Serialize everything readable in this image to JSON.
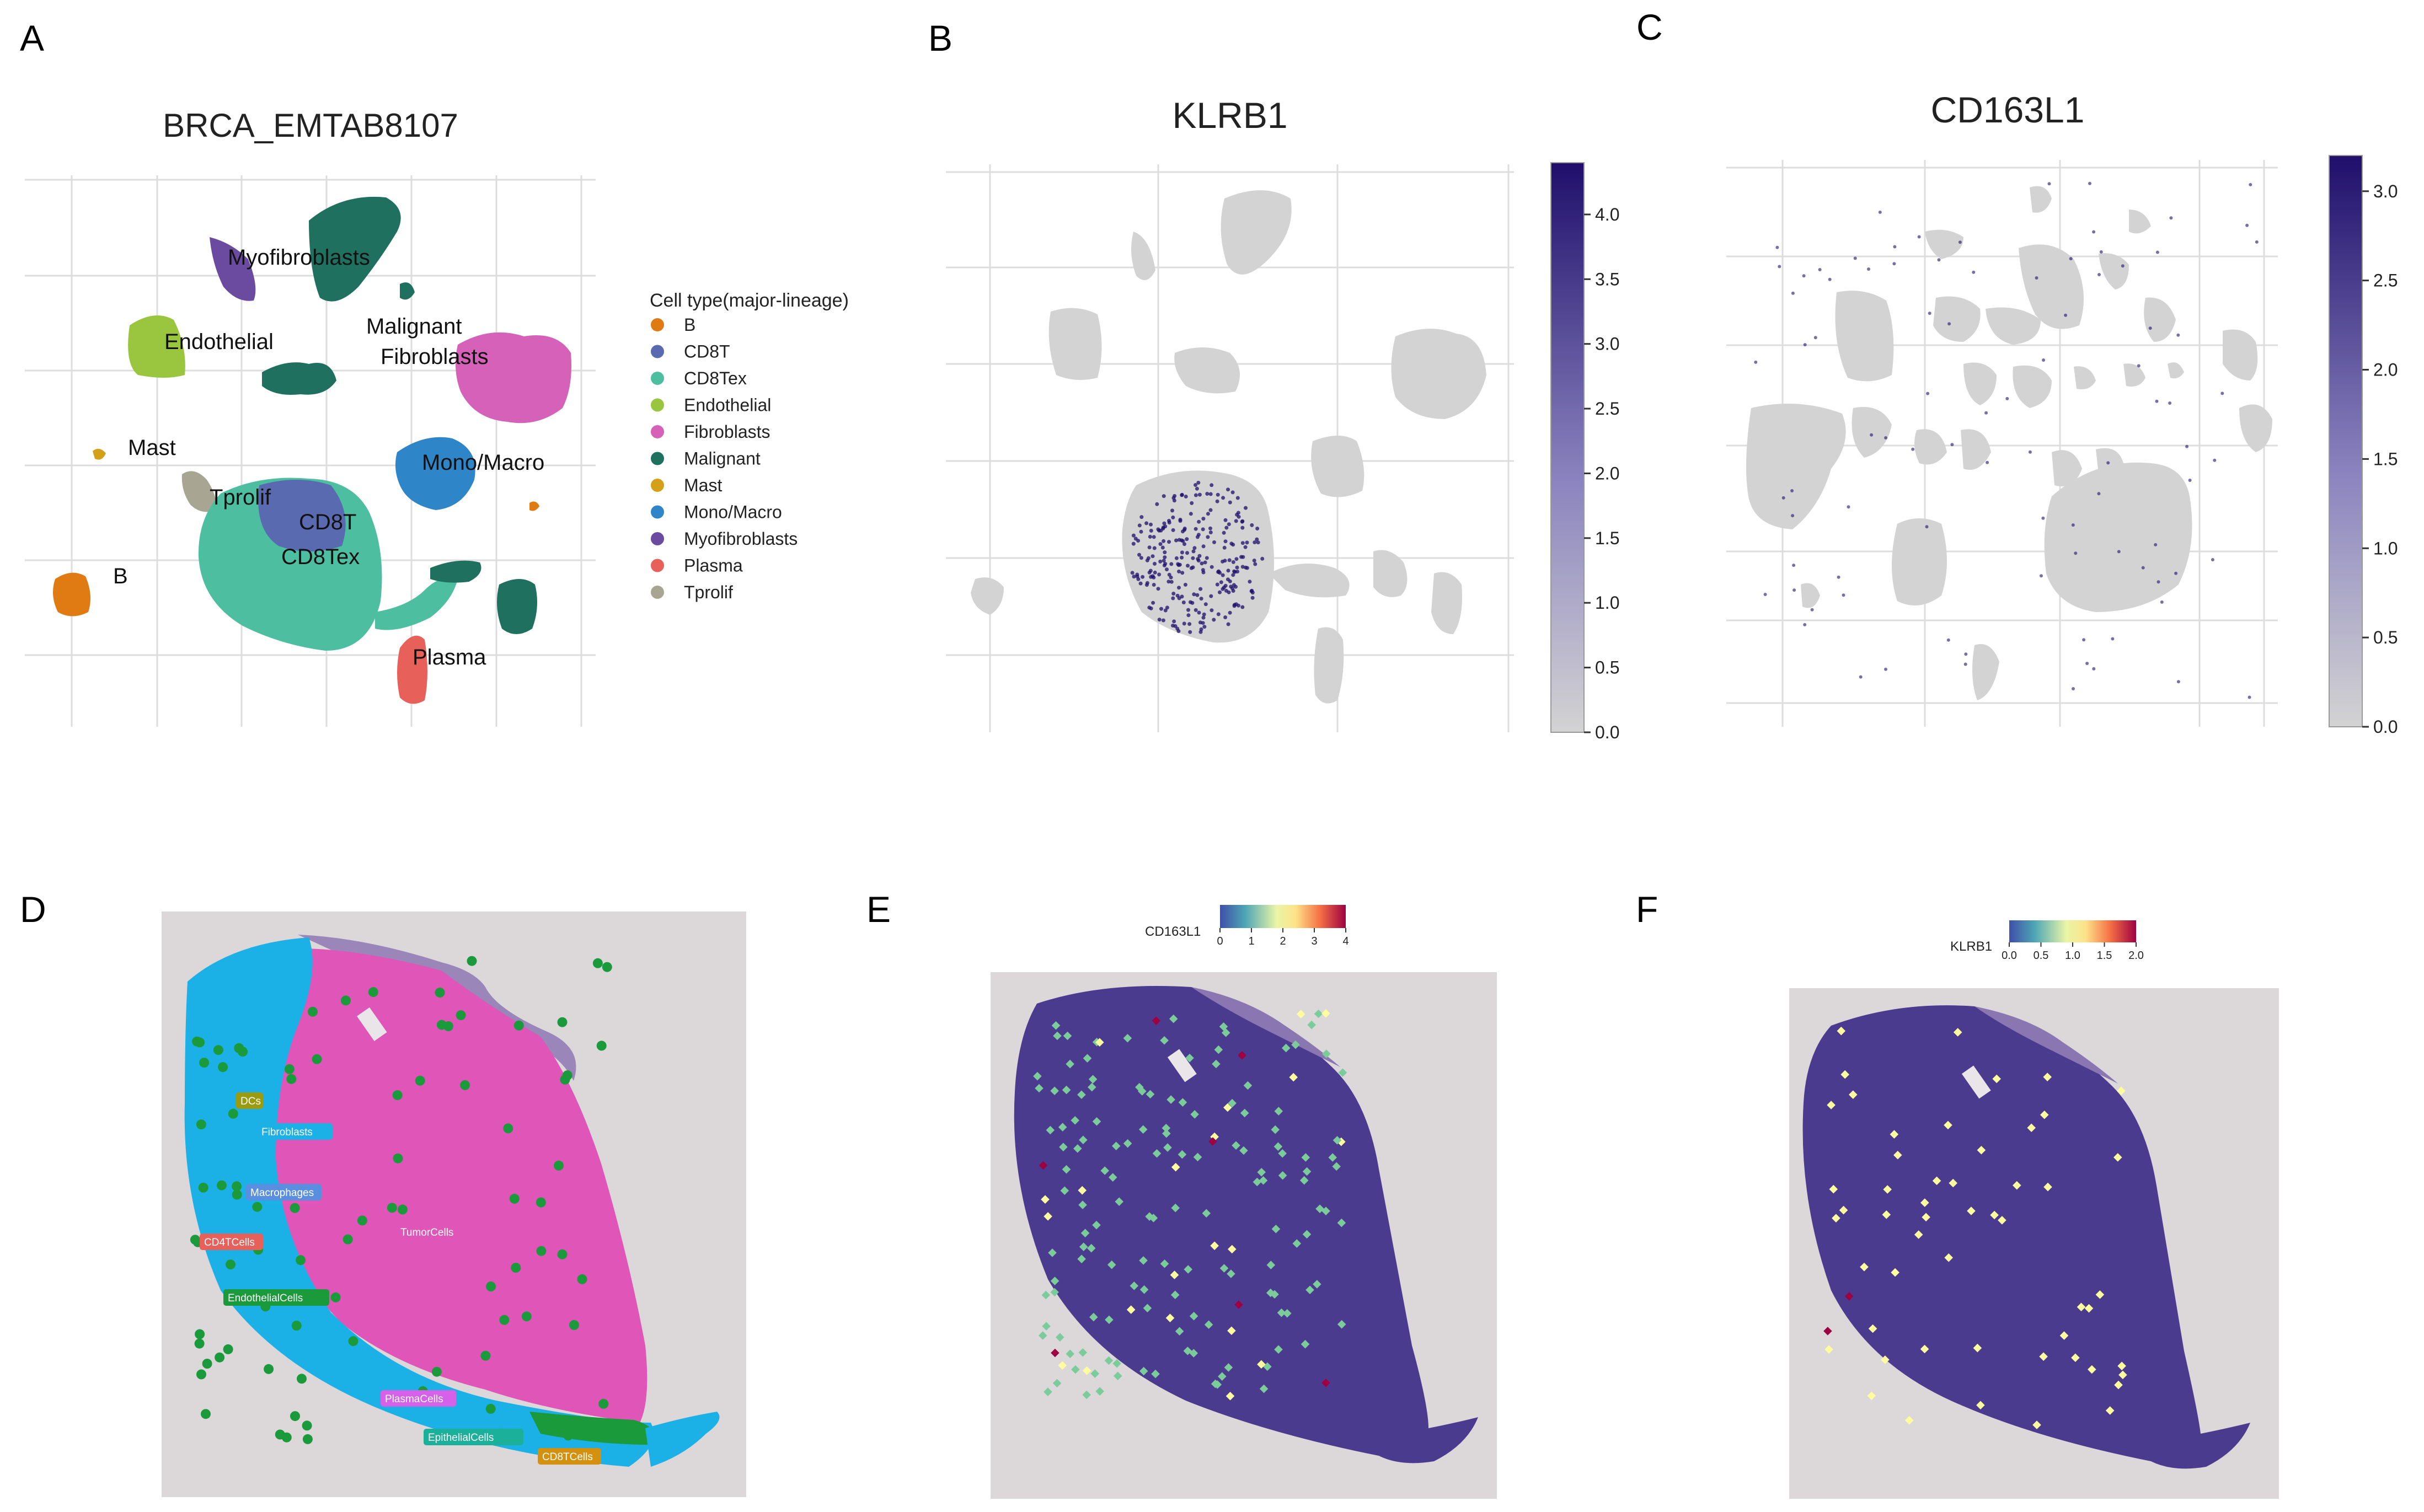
{
  "panel_letters": {
    "a": "A",
    "b": "B",
    "c": "C",
    "d": "D",
    "e": "E",
    "f": "F"
  },
  "umap_title": "BRCA_EMTAB8107",
  "legend_title": "Cell type(major-lineage)",
  "klrb1_title": "KLRB1",
  "cd163l1_title": "CD163L1",
  "colors": {
    "B": "#E07B13",
    "CD8T": "#5A6AB0",
    "CD8Tex": "#4DBFA0",
    "Endothelial": "#9AC53F",
    "Fibroblasts": "#D561B9",
    "Malignant": "#207060",
    "Mast": "#D4A017",
    "Mono/Macro": "#2E86C8",
    "Myofibroblasts": "#6B4BA0",
    "Plasma": "#E8605A",
    "Tprolif": "#A8A593",
    "grey": "#D3D3D3",
    "expr_high": "#1F0F6B"
  },
  "chart_data": [
    {
      "panel": "A",
      "type": "scatter",
      "title": "BRCA_EMTAB8107",
      "xlabel": "",
      "ylabel": "",
      "grid": true,
      "legend_title": "Cell type(major-lineage)",
      "legend": [
        "B",
        "CD8T",
        "CD8Tex",
        "Endothelial",
        "Fibroblasts",
        "Malignant",
        "Mast",
        "Mono/Macro",
        "Myofibroblasts",
        "Plasma",
        "Tprolif"
      ],
      "cluster_labels": [
        "Myofibroblasts",
        "Endothelial",
        "Malignant",
        "Fibroblasts",
        "Mast",
        "Mono/Macro",
        "Tprolif",
        "CD8T",
        "CD8Tex",
        "B",
        "Plasma"
      ]
    },
    {
      "panel": "B",
      "type": "scatter",
      "title": "KLRB1",
      "grid": true,
      "colorbar": {
        "range": [
          0.0,
          4.4
        ],
        "ticks": [
          "0.0",
          "0.5",
          "1.0",
          "1.5",
          "2.0",
          "2.5",
          "3.0",
          "3.5",
          "4.0"
        ]
      }
    },
    {
      "panel": "C",
      "type": "scatter",
      "title": "CD163L1",
      "grid": true,
      "colorbar": {
        "range": [
          0.0,
          3.2
        ],
        "ticks": [
          "0.0",
          "0.5",
          "1.0",
          "1.5",
          "2.0",
          "2.5",
          "3.0"
        ]
      }
    },
    {
      "panel": "D",
      "type": "scatter",
      "title": "",
      "annotations": [
        "DCs",
        "Fibroblasts",
        "Macrophages",
        "CD4TCells",
        "TumorCells",
        "EndothelialCells",
        "PlasmaCells",
        "EpithelialCells",
        "CD8TCells"
      ]
    },
    {
      "panel": "E",
      "type": "scatter",
      "title": "",
      "colorbar": {
        "label": "CD163L1",
        "range": [
          0,
          4
        ],
        "ticks": [
          "0",
          "1",
          "2",
          "3",
          "4"
        ]
      }
    },
    {
      "panel": "F",
      "type": "scatter",
      "title": "",
      "colorbar": {
        "label": "KLRB1",
        "range": [
          0.0,
          2.0
        ],
        "ticks": [
          "0.0",
          "0.5",
          "1.0",
          "1.5",
          "2.0"
        ]
      }
    }
  ]
}
